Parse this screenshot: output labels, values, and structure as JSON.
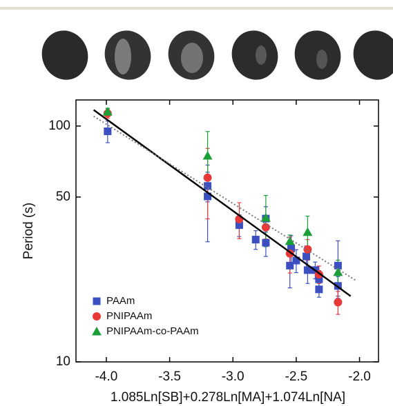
{
  "chart_data": {
    "type": "scatter",
    "x_label": "1.085Ln[SB]+0.278Ln[MA]+1.074Ln[NA]",
    "y_label": "Period (s)",
    "xlim": [
      -4.24,
      -1.85
    ],
    "xticks": [
      {
        "value": -4.0,
        "label": "-4.0"
      },
      -3.5,
      {
        "value": -3.0,
        "label": "-3.0"
      },
      -2.5,
      {
        "value": -2.0,
        "label": "-2.0"
      }
    ],
    "ylim": [
      10,
      129
    ],
    "yticks": [
      10,
      50,
      100
    ],
    "ylog": true,
    "legend": "lower left",
    "series": [
      {
        "name": "PAAm",
        "color": "#3b4fc0",
        "marker": "square",
        "x": [
          -3.99,
          -3.2,
          -3.2,
          -2.95,
          -2.82,
          -2.74,
          -2.74,
          -2.55,
          -2.54,
          -2.5,
          -2.42,
          -2.41,
          -2.35,
          -2.32,
          -2.32,
          -2.17,
          -2.17
        ],
        "values": [
          95,
          55.7,
          50.3,
          38,
          33,
          32,
          40.5,
          25.6,
          30.3,
          26.9,
          28,
          24.5,
          24.5,
          22.4,
          20.3,
          25.6,
          21
        ],
        "errors": [
          10,
          8,
          18,
          4,
          3,
          4,
          5,
          5,
          4,
          3,
          3,
          3,
          2,
          2,
          1.5,
          7,
          2
        ]
      },
      {
        "name": "PNIPAAm",
        "color": "#e83838",
        "marker": "circle",
        "x": [
          -3.99,
          -3.2,
          -2.95,
          -2.74,
          -2.55,
          -2.41,
          -2.32,
          -2.17
        ],
        "values": [
          113,
          60.4,
          40.3,
          37.2,
          28.8,
          30,
          23.5,
          17.9
        ],
        "errors": [
          5,
          20,
          7,
          4,
          5,
          3,
          2,
          2
        ]
      },
      {
        "name": "PNIPAAm-co-PAAm",
        "color": "#1aa038",
        "marker": "triangle",
        "x": [
          -3.99,
          -3.2,
          -2.74,
          -2.55,
          -2.41,
          -2.17
        ],
        "values": [
          115,
          74.8,
          40.8,
          32.5,
          35.5,
          24
        ],
        "errors": [
          4,
          20,
          10,
          2,
          6,
          3
        ]
      }
    ],
    "fit_lines": [
      {
        "color": "#000000",
        "style": "solid",
        "x": [
          -4.1,
          -2.07
        ],
        "values": [
          117,
          19
        ]
      },
      {
        "color": "#777777",
        "style": "dotted",
        "x": [
          -4.1,
          -2.02
        ],
        "values": [
          110,
          22
        ]
      }
    ]
  }
}
